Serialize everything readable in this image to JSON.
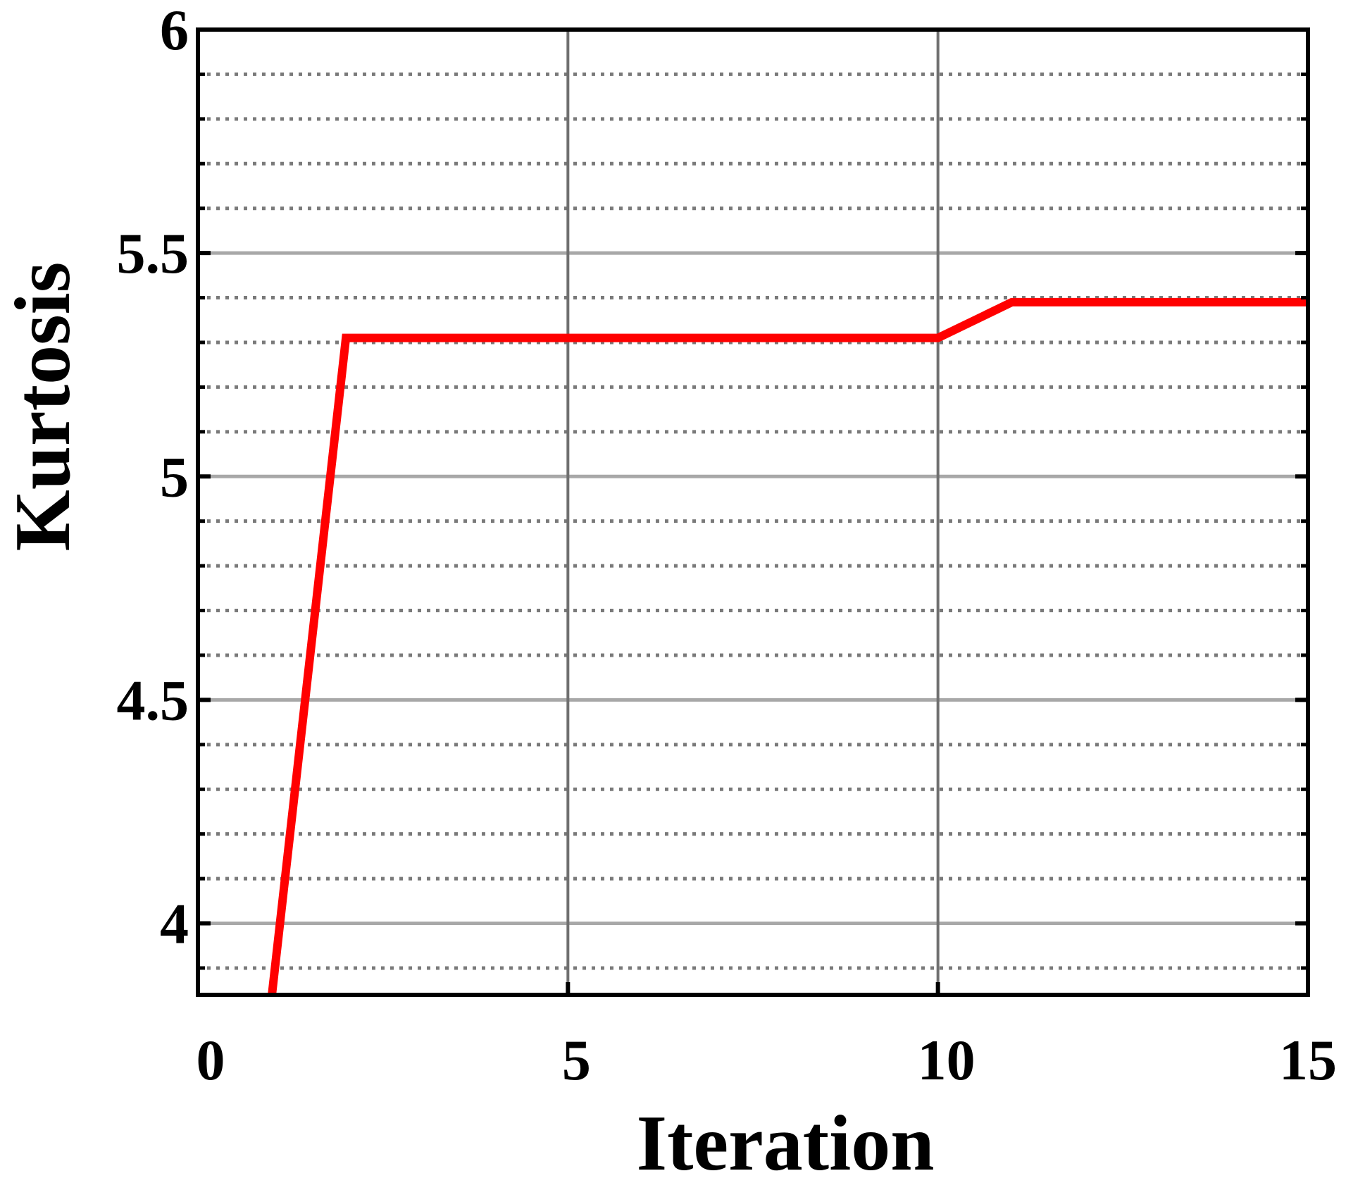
{
  "chart_data": {
    "type": "line",
    "title": "",
    "xlabel": "Iteration",
    "ylabel": "Kurtosis",
    "xlim": [
      0,
      15
    ],
    "ylim": [
      3.84,
      6
    ],
    "x_ticks": [
      0,
      5,
      10,
      15
    ],
    "x_tick_labels": [
      "0",
      "5",
      "10",
      "15"
    ],
    "y_ticks": [
      4,
      4.5,
      5,
      5.5,
      6
    ],
    "y_tick_labels": [
      "4",
      "4.5",
      "5",
      "5.5",
      "6"
    ],
    "y_minor_step": 0.1,
    "grid": true,
    "legend": "none",
    "series": [
      {
        "color": "#ff0000",
        "x": [
          1,
          2,
          10,
          11,
          15
        ],
        "y": [
          3.84,
          5.31,
          5.31,
          5.39,
          5.39
        ]
      }
    ],
    "colors": {
      "line": "#ff0000",
      "major_grid": "#a8a8a8",
      "minor_grid": "#7a7a7a",
      "axes": "#000000"
    }
  }
}
